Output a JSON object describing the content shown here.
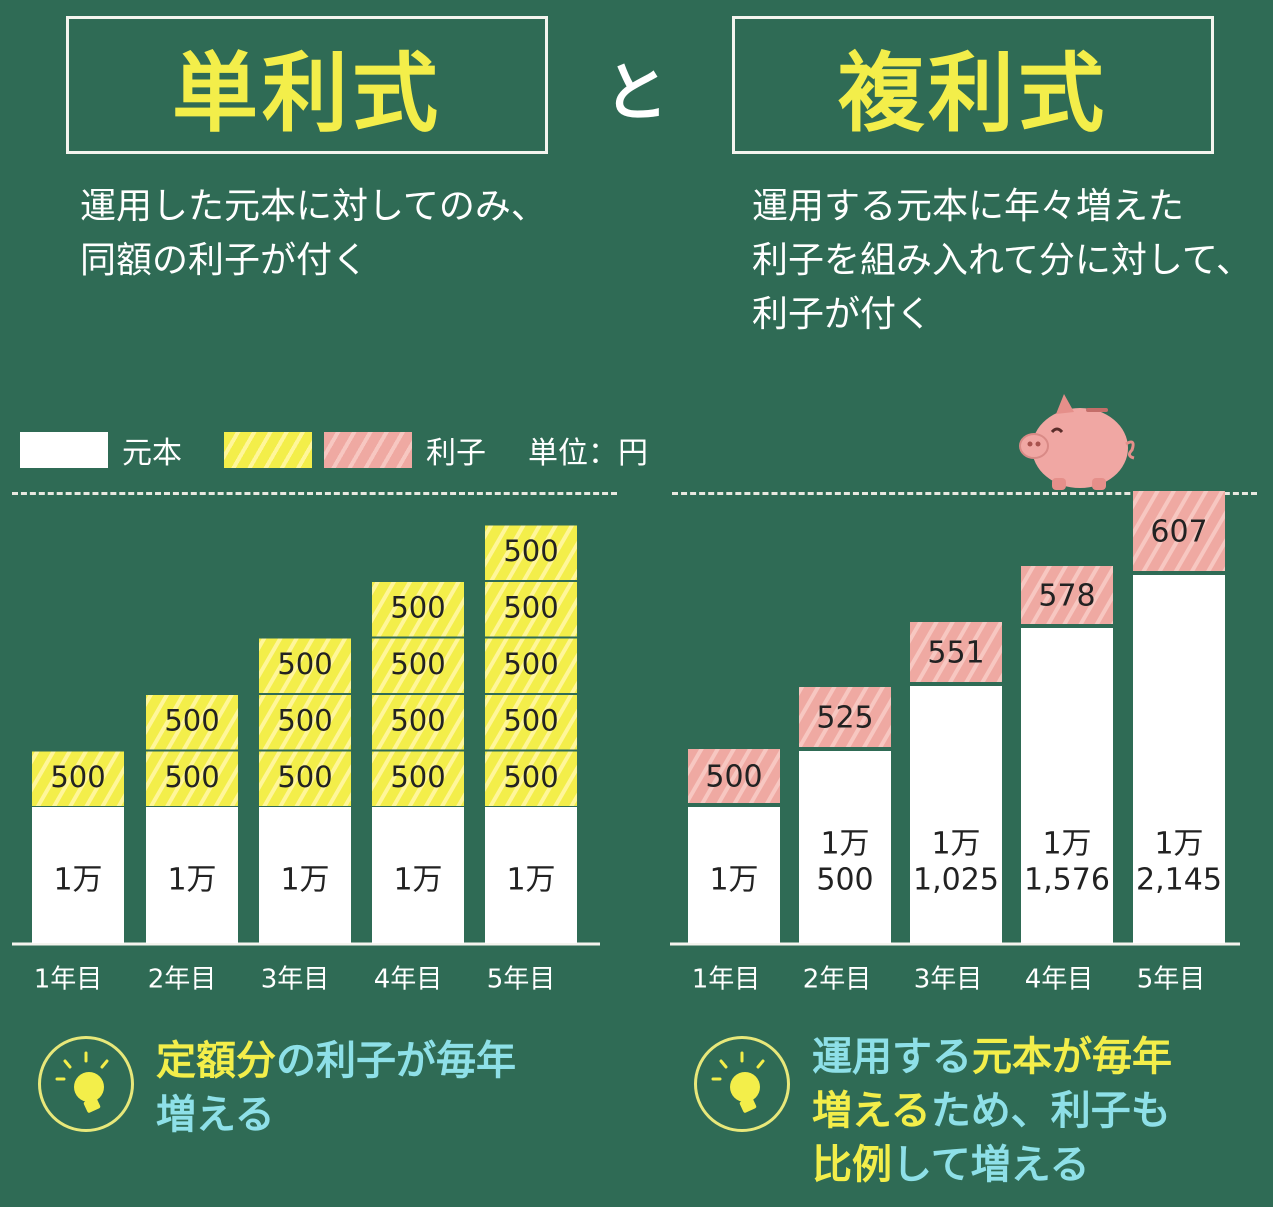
{
  "titles": {
    "left": "単利式",
    "conjunction": "と",
    "right": "複利式"
  },
  "descriptions": {
    "left": [
      "運用した元本に対してのみ、",
      "同額の利子が付く"
    ],
    "right": [
      "運用する元本に年々増えた",
      "利子を組み入れて分に対して、",
      "利子が付く"
    ]
  },
  "legend": {
    "principal": "元本",
    "interest": "利子",
    "unit": "単位：円"
  },
  "colors": {
    "background": "#2f6b55",
    "principal": "#ffffff",
    "simple_interest": "#f3ee4a",
    "compound_interest": "#efa9a2",
    "title_text": "#f3ee4a",
    "highlight_cyan": "#8ee0e8"
  },
  "chart_data": [
    {
      "type": "bar",
      "stacked": true,
      "name": "単利式",
      "categories": [
        "1年目",
        "2年目",
        "3年目",
        "4年目",
        "5年目"
      ],
      "principal_labels": [
        "1万",
        "1万",
        "1万",
        "1万",
        "1万"
      ],
      "principal_values": [
        10000,
        10000,
        10000,
        10000,
        10000
      ],
      "interest_blocks": [
        [
          500
        ],
        [
          500,
          500
        ],
        [
          500,
          500,
          500
        ],
        [
          500,
          500,
          500,
          500
        ],
        [
          500,
          500,
          500,
          500,
          500
        ]
      ],
      "interest_labels": [
        "500",
        "500",
        "500",
        "500",
        "500"
      ]
    },
    {
      "type": "bar",
      "stacked": true,
      "name": "複利式",
      "categories": [
        "1年目",
        "2年目",
        "3年目",
        "4年目",
        "5年目"
      ],
      "principal_labels": [
        [
          "1万"
        ],
        [
          "1万",
          "500"
        ],
        [
          "1万",
          "1,025"
        ],
        [
          "1万",
          "1,576"
        ],
        [
          "1万",
          "2,145"
        ]
      ],
      "principal_values": [
        10000,
        10500,
        11025,
        11576,
        12145
      ],
      "interest_values": [
        500,
        525,
        551,
        578,
        607
      ],
      "interest_labels": [
        "500",
        "525",
        "551",
        "578",
        "607"
      ]
    }
  ],
  "tips": {
    "left": [
      [
        {
          "t": "定額分",
          "c": "yellow"
        },
        {
          "t": "の利子が毎年",
          "c": "cyan"
        }
      ],
      [
        {
          "t": "増える",
          "c": "cyan"
        }
      ]
    ],
    "right": [
      [
        {
          "t": "運用する",
          "c": "cyan"
        },
        {
          "t": "元本が毎年",
          "c": "yellow"
        }
      ],
      [
        {
          "t": "増える",
          "c": "yellow"
        },
        {
          "t": "ため、利子も",
          "c": "cyan"
        }
      ],
      [
        {
          "t": "比例",
          "c": "yellow"
        },
        {
          "t": "して増える",
          "c": "cyan"
        }
      ]
    ]
  }
}
